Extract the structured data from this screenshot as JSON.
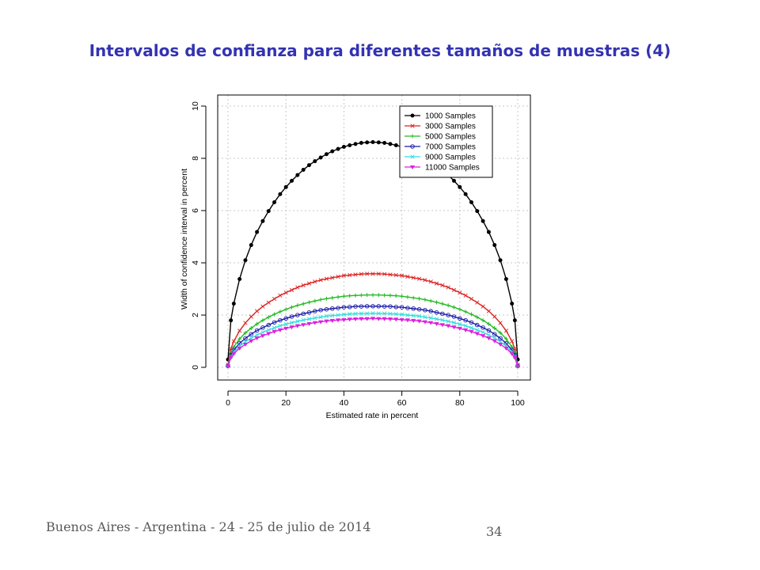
{
  "slide": {
    "title": "Intervalos de confianza para diferentes tamaños de muestras (4)",
    "footer": "Buenos Aires - Argentina - 24 - 25 de julio de 2014",
    "page_number": "34"
  },
  "chart_data": {
    "type": "line",
    "title": "",
    "xlabel": "Estimated rate in percent",
    "ylabel": "Width of confidence interval in percent",
    "xlim": [
      0,
      100
    ],
    "ylim": [
      0,
      10
    ],
    "xticks": [
      "0",
      "20",
      "40",
      "60",
      "80",
      "100"
    ],
    "yticks": [
      "0",
      "2",
      "4",
      "6",
      "8",
      "10"
    ],
    "grid": true,
    "legend_position": "top-right",
    "x": [
      0,
      1,
      2,
      4,
      6,
      8,
      10,
      12,
      14,
      16,
      18,
      20,
      22,
      24,
      26,
      28,
      30,
      32,
      34,
      36,
      38,
      40,
      42,
      44,
      46,
      48,
      50,
      52,
      54,
      56,
      58,
      60,
      62,
      64,
      66,
      68,
      70,
      72,
      74,
      76,
      78,
      80,
      82,
      84,
      86,
      88,
      90,
      92,
      94,
      96,
      98,
      99,
      100
    ],
    "series": [
      {
        "name": "1000 Samples",
        "color": "#000000",
        "marker": "circle-filled",
        "values": [
          0.3,
          1.8,
          2.44,
          3.38,
          4.1,
          4.68,
          5.18,
          5.6,
          5.98,
          6.32,
          6.63,
          6.9,
          7.14,
          7.36,
          7.56,
          7.74,
          7.89,
          8.03,
          8.16,
          8.27,
          8.36,
          8.44,
          8.5,
          8.55,
          8.59,
          8.61,
          8.62,
          8.61,
          8.59,
          8.55,
          8.5,
          8.44,
          8.36,
          8.27,
          8.16,
          8.03,
          7.89,
          7.74,
          7.56,
          7.36,
          7.14,
          6.9,
          6.63,
          6.32,
          5.98,
          5.6,
          5.18,
          4.68,
          4.1,
          3.38,
          2.44,
          1.8,
          0.3
        ]
      },
      {
        "name": "3000 Samples",
        "color": "#dd2222",
        "marker": "x",
        "values": [
          0.1,
          0.71,
          1.0,
          1.4,
          1.7,
          1.94,
          2.15,
          2.33,
          2.48,
          2.62,
          2.75,
          2.86,
          2.96,
          3.06,
          3.14,
          3.21,
          3.28,
          3.34,
          3.39,
          3.43,
          3.47,
          3.51,
          3.53,
          3.55,
          3.57,
          3.58,
          3.58,
          3.58,
          3.57,
          3.55,
          3.53,
          3.51,
          3.47,
          3.43,
          3.39,
          3.34,
          3.28,
          3.21,
          3.14,
          3.06,
          2.96,
          2.86,
          2.75,
          2.62,
          2.48,
          2.33,
          2.15,
          1.94,
          1.7,
          1.4,
          1.0,
          0.71,
          0.1
        ]
      },
      {
        "name": "5000 Samples",
        "color": "#22bb22",
        "marker": "plus",
        "values": [
          0.05,
          0.55,
          0.78,
          1.09,
          1.32,
          1.5,
          1.66,
          1.8,
          1.92,
          2.03,
          2.13,
          2.22,
          2.3,
          2.37,
          2.43,
          2.49,
          2.54,
          2.59,
          2.63,
          2.66,
          2.69,
          2.72,
          2.74,
          2.75,
          2.76,
          2.77,
          2.77,
          2.77,
          2.76,
          2.75,
          2.74,
          2.72,
          2.69,
          2.66,
          2.63,
          2.59,
          2.54,
          2.49,
          2.43,
          2.37,
          2.3,
          2.22,
          2.13,
          2.03,
          1.92,
          1.8,
          1.66,
          1.5,
          1.32,
          1.09,
          0.78,
          0.55,
          0.05
        ]
      },
      {
        "name": "7000 Samples",
        "color": "#1a1aaa",
        "marker": "circle-open",
        "values": [
          0.05,
          0.47,
          0.66,
          0.92,
          1.11,
          1.27,
          1.41,
          1.52,
          1.62,
          1.72,
          1.8,
          1.87,
          1.94,
          2.0,
          2.05,
          2.1,
          2.15,
          2.19,
          2.22,
          2.25,
          2.27,
          2.3,
          2.31,
          2.33,
          2.33,
          2.34,
          2.34,
          2.34,
          2.33,
          2.33,
          2.31,
          2.3,
          2.27,
          2.25,
          2.22,
          2.19,
          2.15,
          2.1,
          2.05,
          2.0,
          1.94,
          1.87,
          1.8,
          1.72,
          1.62,
          1.52,
          1.41,
          1.27,
          1.11,
          0.92,
          0.66,
          0.47,
          0.05
        ]
      },
      {
        "name": "9000 Samples",
        "color": "#33dddd",
        "marker": "x",
        "values": [
          0.05,
          0.41,
          0.58,
          0.81,
          0.98,
          1.12,
          1.24,
          1.34,
          1.43,
          1.51,
          1.59,
          1.65,
          1.71,
          1.76,
          1.81,
          1.85,
          1.89,
          1.92,
          1.96,
          1.98,
          2.0,
          2.02,
          2.04,
          2.05,
          2.06,
          2.06,
          2.07,
          2.06,
          2.06,
          2.05,
          2.04,
          2.02,
          2.0,
          1.98,
          1.96,
          1.92,
          1.89,
          1.85,
          1.81,
          1.76,
          1.71,
          1.65,
          1.59,
          1.51,
          1.43,
          1.34,
          1.24,
          1.12,
          0.98,
          0.81,
          0.58,
          0.41,
          0.05
        ]
      },
      {
        "name": "11000 Samples",
        "color": "#dd22dd",
        "marker": "triangle-down",
        "values": [
          0.05,
          0.37,
          0.52,
          0.73,
          0.88,
          1.01,
          1.12,
          1.21,
          1.29,
          1.37,
          1.43,
          1.49,
          1.54,
          1.59,
          1.63,
          1.67,
          1.71,
          1.74,
          1.77,
          1.79,
          1.81,
          1.82,
          1.84,
          1.85,
          1.86,
          1.86,
          1.87,
          1.86,
          1.86,
          1.85,
          1.84,
          1.82,
          1.81,
          1.79,
          1.77,
          1.74,
          1.71,
          1.67,
          1.63,
          1.59,
          1.54,
          1.49,
          1.43,
          1.37,
          1.29,
          1.21,
          1.12,
          1.01,
          0.88,
          0.73,
          0.52,
          0.37,
          0.05
        ]
      }
    ]
  }
}
